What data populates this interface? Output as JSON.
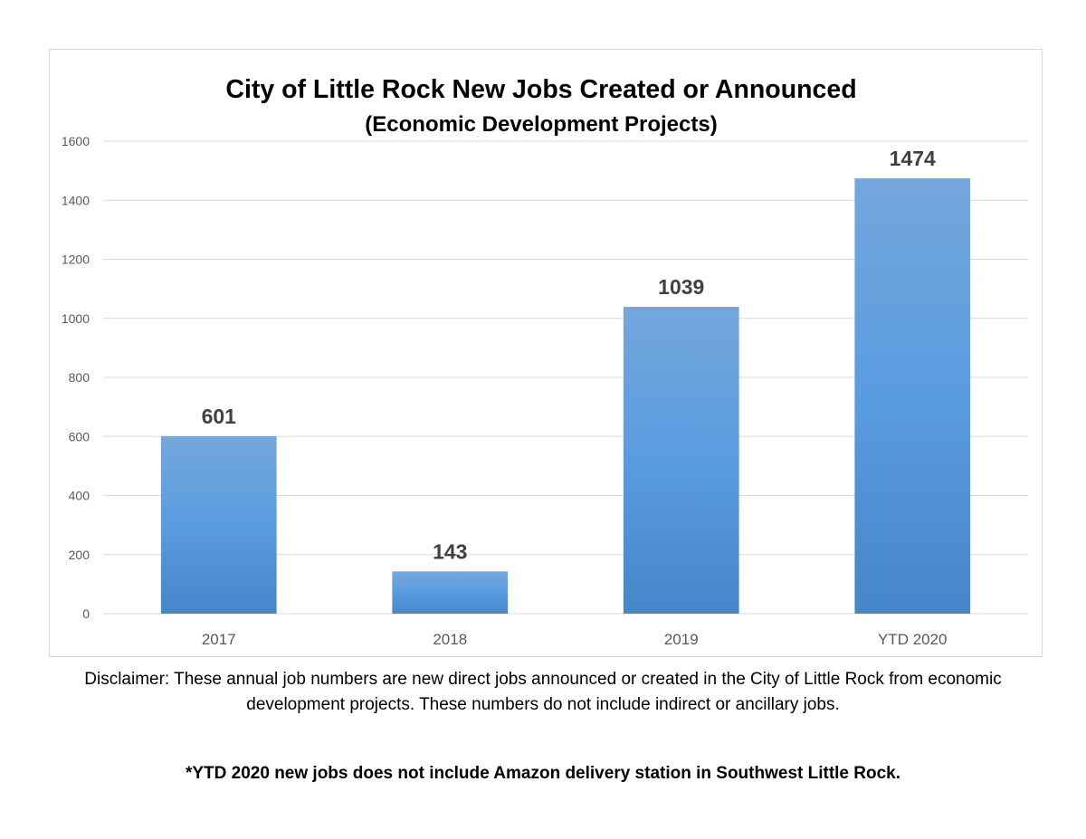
{
  "chart_data": {
    "type": "bar",
    "title": "City of Little Rock New Jobs Created or Announced",
    "subtitle": "(Economic Development Projects)",
    "categories": [
      "2017",
      "2018",
      "2019",
      "YTD 2020"
    ],
    "values": [
      601,
      143,
      1039,
      1474
    ],
    "ylim": [
      0,
      1600
    ],
    "yticks": [
      0,
      200,
      400,
      600,
      800,
      1000,
      1200,
      1400,
      1600
    ],
    "grid": true,
    "legend": "none",
    "data_labels": true,
    "colors": {
      "bar_top": "#74a7dc",
      "bar_mid": "#5a9ce0",
      "bar_bottom": "#4586c8",
      "gridline": "#d9d9d9",
      "tick_text": "#595959",
      "data_label_text": "#404040"
    }
  },
  "notes": {
    "disclaimer": "Disclaimer: These annual job numbers are new direct jobs announced or created in the City of Little Rock from economic development projects. These numbers do not include indirect or ancillary jobs.",
    "footnote": "*YTD 2020 new jobs does not include Amazon delivery station in Southwest Little Rock."
  }
}
